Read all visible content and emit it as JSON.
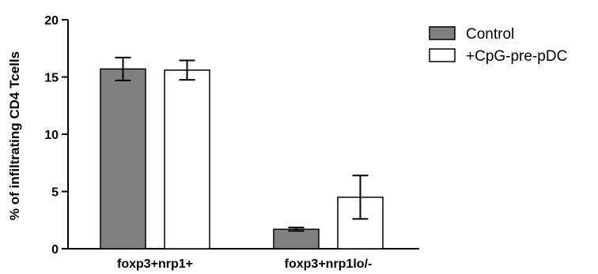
{
  "chart_data": {
    "type": "bar",
    "ylabel": "% of infiltrating CD4 Tcells",
    "xlabel": "",
    "ylim": [
      0,
      20
    ],
    "yticks": [
      0,
      5,
      10,
      15,
      20
    ],
    "categories": [
      "foxp3+nrp1+",
      "foxp3+nrp1lo/-"
    ],
    "series": [
      {
        "name": "Control",
        "color": "#808080",
        "values": [
          15.7,
          1.7
        ],
        "errors": [
          1.0,
          0.15
        ]
      },
      {
        "name": "+CpG-pre-pDC",
        "color": "#ffffff",
        "values": [
          15.6,
          4.5
        ],
        "errors": [
          0.85,
          1.9
        ]
      }
    ],
    "legend_position": "top-right",
    "grid": false,
    "error_bars": true
  }
}
